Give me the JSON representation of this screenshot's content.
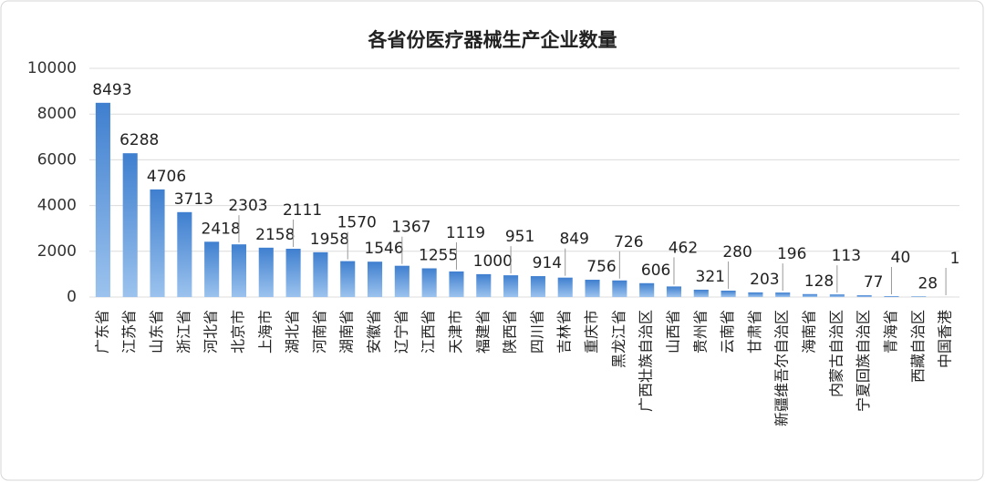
{
  "chart_data": {
    "type": "bar",
    "title": "各省份医疗器械生产企业数量",
    "categories": [
      "广东省",
      "江苏省",
      "山东省",
      "浙江省",
      "河北省",
      "北京市",
      "上海市",
      "湖北省",
      "河南省",
      "湖南省",
      "安徽省",
      "辽宁省",
      "江西省",
      "天津市",
      "福建省",
      "陕西省",
      "四川省",
      "吉林省",
      "重庆市",
      "黑龙江省",
      "广西壮族自治区",
      "山西省",
      "贵州省",
      "云南省",
      "甘肃省",
      "新疆维吾尔自治区",
      "海南省",
      "内蒙古自治区",
      "宁夏回族自治区",
      "青海省",
      "西藏自治区",
      "中国香港"
    ],
    "values": [
      8493,
      6288,
      4706,
      3713,
      2418,
      2303,
      2158,
      2111,
      1958,
      1570,
      1546,
      1367,
      1255,
      1119,
      1000,
      951,
      914,
      849,
      756,
      726,
      606,
      462,
      321,
      280,
      203,
      196,
      128,
      113,
      77,
      40,
      28,
      1
    ],
    "color": "#4a8bd6",
    "ylim": [
      0,
      10000
    ],
    "yticks": [
      0,
      2000,
      4000,
      6000,
      8000,
      10000
    ],
    "grid": true
  }
}
